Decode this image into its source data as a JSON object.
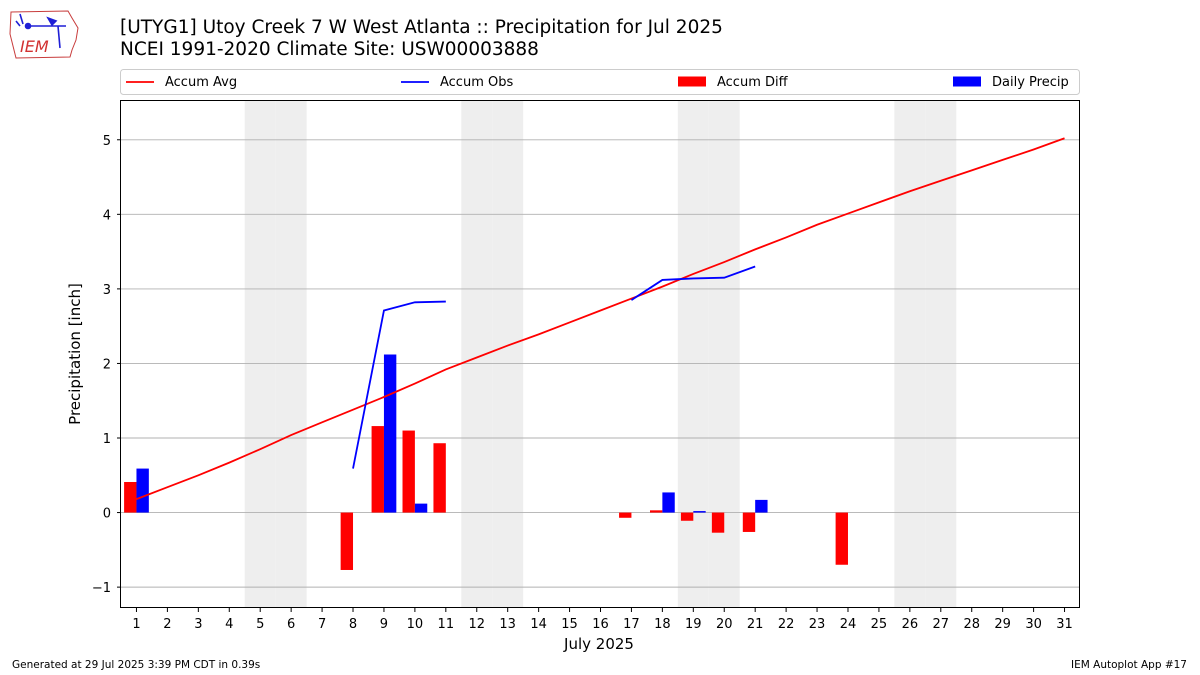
{
  "logo": {
    "text": "IEM",
    "icon": "iem-iowa-logo"
  },
  "header": {
    "title_line1": "[UTYG1] Utoy Creek 7 W West Atlanta :: Precipitation for Jul 2025",
    "title_line2": "NCEI 1991-2020 Climate Site: USW00003888"
  },
  "footer": {
    "generated": "Generated at 29 Jul 2025 3:39 PM CDT in 0.39s",
    "app": "IEM Autoplot App #17"
  },
  "colors": {
    "avg": "#ff0000",
    "obs": "#0000ff",
    "diff": "#ff0000",
    "daily": "#0000ff",
    "weekend": "#eeeeee",
    "grid": "#b0b0b0"
  },
  "chart_data": {
    "type": "bar",
    "xlabel": "July 2025",
    "ylabel": "Precipitation [inch]",
    "xlim": [
      0.5,
      31.5
    ],
    "ylim": [
      -1.28,
      5.52
    ],
    "grid": "horizontal",
    "legend_position": "top",
    "x": [
      1,
      2,
      3,
      4,
      5,
      6,
      7,
      8,
      9,
      10,
      11,
      12,
      13,
      14,
      15,
      16,
      17,
      18,
      19,
      20,
      21,
      22,
      23,
      24,
      25,
      26,
      27,
      28,
      29,
      30,
      31
    ],
    "y_ticks": [
      -1,
      0,
      1,
      2,
      3,
      4,
      5
    ],
    "weekend_days": [
      5,
      6,
      12,
      13,
      19,
      20,
      26,
      27
    ],
    "legend": [
      "Accum Avg",
      "Accum Obs",
      "Accum Diff",
      "Daily Precip"
    ],
    "series": [
      {
        "name": "Accum Avg",
        "kind": "line",
        "x": [
          1,
          2,
          3,
          4,
          5,
          6,
          7,
          8,
          9,
          10,
          11,
          12,
          13,
          14,
          15,
          16,
          17,
          18,
          19,
          20,
          21,
          22,
          23,
          24,
          25,
          26,
          27,
          28,
          29,
          30,
          31
        ],
        "values": [
          0.18,
          0.34,
          0.5,
          0.67,
          0.85,
          1.04,
          1.21,
          1.38,
          1.55,
          1.73,
          1.92,
          2.08,
          2.24,
          2.39,
          2.55,
          2.71,
          2.87,
          3.03,
          3.2,
          3.36,
          3.53,
          3.69,
          3.86,
          4.01,
          4.16,
          4.31,
          4.45,
          4.59,
          4.73,
          4.87,
          5.02
        ]
      },
      {
        "name": "Accum Obs",
        "kind": "line",
        "segments": [
          {
            "x": [
              8,
              9,
              10,
              11
            ],
            "values": [
              0.59,
              2.71,
              2.82,
              2.83
            ]
          },
          {
            "x": [
              17,
              18,
              19,
              20,
              21
            ],
            "values": [
              2.85,
              3.12,
              3.14,
              3.15,
              3.3
            ]
          }
        ]
      },
      {
        "name": "Accum Diff",
        "kind": "bar",
        "x": [
          1,
          8,
          9,
          10,
          11,
          17,
          18,
          19,
          20,
          21,
          24
        ],
        "values": [
          0.41,
          -0.77,
          1.16,
          1.1,
          0.93,
          -0.07,
          0.03,
          -0.11,
          -0.27,
          -0.26,
          -0.7
        ]
      },
      {
        "name": "Daily Precip",
        "kind": "bar",
        "x": [
          1,
          9,
          10,
          18,
          19,
          21
        ],
        "values": [
          0.59,
          2.12,
          0.12,
          0.27,
          0.02,
          0.17
        ]
      }
    ]
  }
}
